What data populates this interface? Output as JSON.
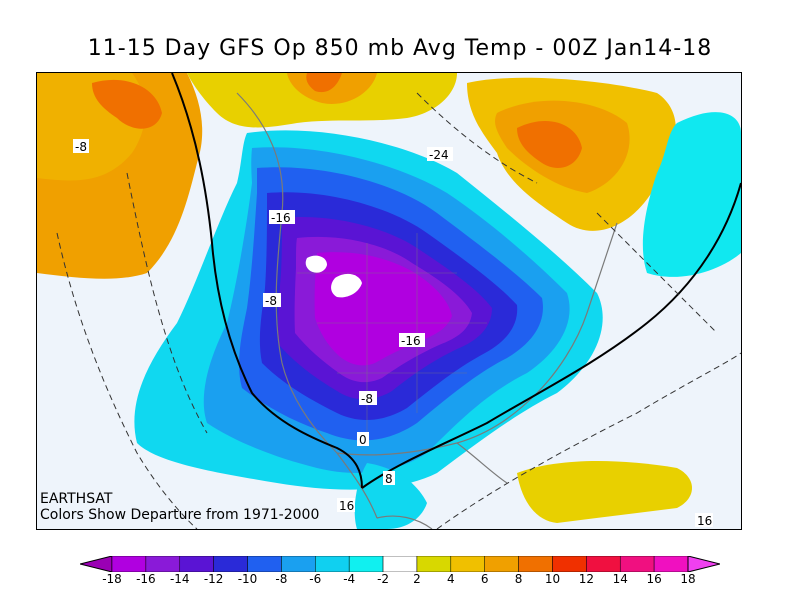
{
  "title": "11-15 Day GFS Op 850 mb Avg Temp - 00Z Jan14-18",
  "credit": {
    "source": "EARTHSAT",
    "note": "Colors Show Departure from 1971-2000"
  },
  "contour_labels": [
    "-8",
    "-24",
    "-16",
    "-8",
    "-16",
    "-8",
    "0",
    "8",
    "16",
    "16"
  ],
  "legend": {
    "colors": [
      "#9a00b4",
      "#b000e0",
      "#8a1ad8",
      "#5a14d4",
      "#2a2ad8",
      "#2060f0",
      "#1aa0f0",
      "#10d0f0",
      "#10f0f0",
      "#ffffff",
      "#d8d800",
      "#f0c000",
      "#f0a000",
      "#f07000",
      "#f03000",
      "#f01040",
      "#f01080",
      "#f010c0",
      "#f040f0"
    ],
    "ticks": [
      "-18",
      "-16",
      "-14",
      "-12",
      "-10",
      "-8",
      "-6",
      "-4",
      "-2",
      "2",
      "4",
      "6",
      "8",
      "10",
      "12",
      "14",
      "16",
      "18"
    ]
  }
}
